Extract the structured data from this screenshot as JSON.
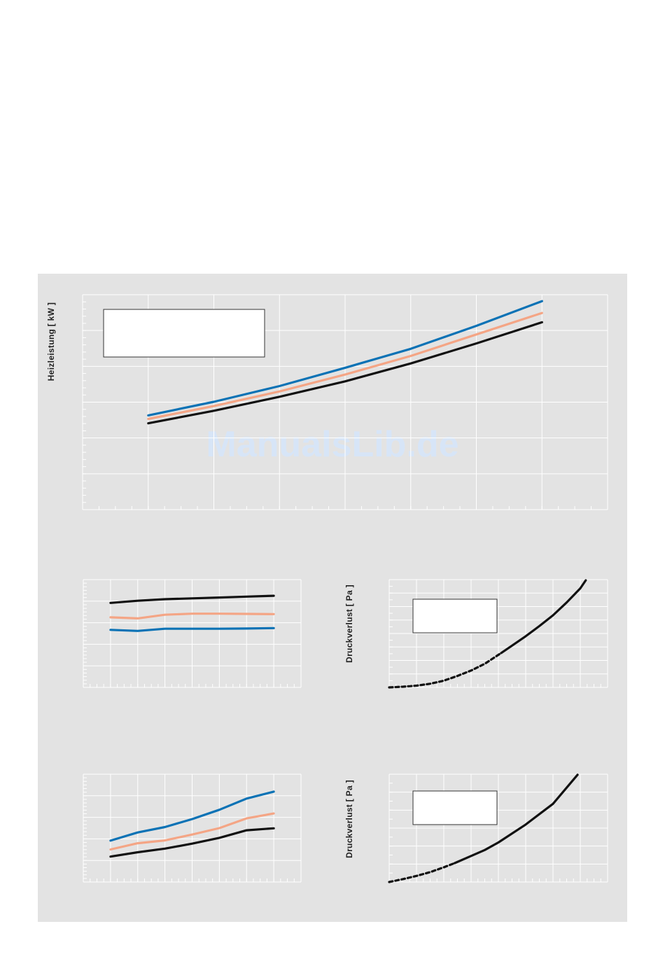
{
  "watermark": "ManualsLib.de",
  "colors": {
    "background": "#e3e3e3",
    "grid": "#ffffff",
    "blue": "#0b72b5",
    "salmon": "#f4a585",
    "black": "#111111"
  },
  "chart_data": [
    {
      "id": "heizleistung",
      "type": "line",
      "title": "",
      "xlabel": "",
      "ylabel": "Heizleistung [ kW ]",
      "grid": true,
      "xlim": [
        0,
        8
      ],
      "ylim": [
        0,
        6
      ],
      "series": [
        {
          "color": "#0b72b5",
          "x": [
            1,
            2,
            3,
            4,
            5,
            6,
            7
          ],
          "y": [
            2.63,
            3.01,
            3.45,
            3.96,
            4.49,
            5.13,
            5.82
          ]
        },
        {
          "color": "#f4a585",
          "x": [
            1,
            2,
            3,
            4,
            5,
            6,
            7
          ],
          "y": [
            2.53,
            2.89,
            3.3,
            3.77,
            4.29,
            4.89,
            5.49
          ]
        },
        {
          "color": "#111111",
          "x": [
            1,
            2,
            3,
            4,
            5,
            6,
            7
          ],
          "y": [
            2.41,
            2.76,
            3.15,
            3.58,
            4.08,
            4.64,
            5.23
          ]
        }
      ]
    },
    {
      "id": "mid-left",
      "type": "line",
      "title": "",
      "xlabel": "",
      "ylabel": "",
      "grid": true,
      "xlim": [
        0,
        8
      ],
      "ylim": [
        0,
        5
      ],
      "series": [
        {
          "color": "#111111",
          "x": [
            1,
            2,
            3,
            4,
            5,
            6,
            7
          ],
          "y": [
            3.92,
            4.02,
            4.09,
            4.13,
            4.17,
            4.21,
            4.25
          ]
        },
        {
          "color": "#f4a585",
          "x": [
            1,
            2,
            3,
            4,
            5,
            6,
            7
          ],
          "y": [
            3.25,
            3.2,
            3.37,
            3.42,
            3.42,
            3.41,
            3.4
          ]
        },
        {
          "color": "#0b72b5",
          "x": [
            1,
            2,
            3,
            4,
            5,
            6,
            7
          ],
          "y": [
            2.67,
            2.62,
            2.72,
            2.72,
            2.72,
            2.73,
            2.75
          ]
        }
      ]
    },
    {
      "id": "druckverlust-1",
      "type": "line",
      "title": "",
      "xlabel": "",
      "ylabel": "Druckverlust [ Pa ]",
      "grid": true,
      "xlim": [
        0,
        8
      ],
      "ylim": [
        0,
        8
      ],
      "series": [
        {
          "style": "dashed",
          "color": "#111111",
          "x": [
            0,
            0.5,
            1,
            1.5,
            2,
            2.5,
            3,
            3.5,
            4.1
          ],
          "y": [
            0.0,
            0.05,
            0.13,
            0.27,
            0.5,
            0.85,
            1.25,
            1.75,
            2.55
          ]
        },
        {
          "style": "solid",
          "color": "#111111",
          "x": [
            4.1,
            4.5,
            5,
            5.5,
            6,
            6.5,
            7,
            7.2
          ],
          "y": [
            2.55,
            3.1,
            3.8,
            4.55,
            5.35,
            6.3,
            7.35,
            7.95
          ]
        }
      ]
    },
    {
      "id": "bottom-left",
      "type": "line",
      "title": "",
      "xlabel": "",
      "ylabel": "",
      "grid": true,
      "xlim": [
        0,
        8
      ],
      "ylim": [
        0,
        5
      ],
      "series": [
        {
          "color": "#0b72b5",
          "x": [
            1,
            2,
            3,
            4,
            5,
            6,
            7
          ],
          "y": [
            1.92,
            2.3,
            2.55,
            2.92,
            3.35,
            3.87,
            4.19
          ]
        },
        {
          "color": "#f4a585",
          "x": [
            1,
            2,
            3,
            4,
            5,
            6,
            7
          ],
          "y": [
            1.51,
            1.8,
            1.93,
            2.2,
            2.5,
            2.95,
            3.18
          ]
        },
        {
          "color": "#111111",
          "x": [
            1,
            2,
            3,
            4,
            5,
            6,
            7
          ],
          "y": [
            1.18,
            1.38,
            1.55,
            1.78,
            2.05,
            2.4,
            2.49
          ]
        }
      ]
    },
    {
      "id": "druckverlust-2",
      "type": "line",
      "title": "",
      "xlabel": "",
      "ylabel": "Druckverlust [ Pa ]",
      "grid": true,
      "xlim": [
        0,
        8
      ],
      "ylim": [
        0,
        6
      ],
      "series": [
        {
          "style": "dashed",
          "color": "#111111",
          "x": [
            0,
            0.5,
            1,
            1.5,
            2,
            2.4
          ],
          "y": [
            0.0,
            0.16,
            0.34,
            0.55,
            0.82,
            1.05
          ]
        },
        {
          "style": "solid",
          "color": "#111111",
          "x": [
            2.4,
            3,
            3.5,
            4,
            5,
            6,
            6.9
          ],
          "y": [
            1.05,
            1.45,
            1.78,
            2.2,
            3.2,
            4.35,
            5.97
          ]
        }
      ]
    }
  ]
}
